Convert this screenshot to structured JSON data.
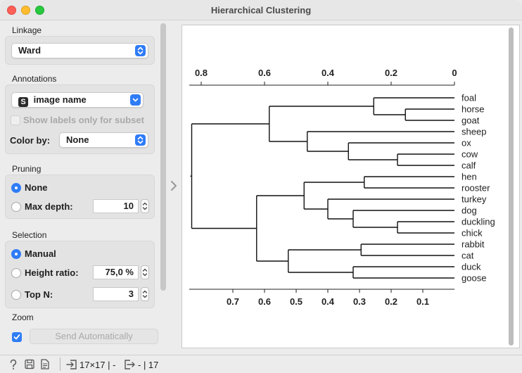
{
  "window": {
    "title": "Hierarchical Clustering"
  },
  "linkage": {
    "label": "Linkage",
    "value": "Ward"
  },
  "annotations": {
    "label": "Annotations",
    "value": "image name",
    "type_badge": "S",
    "show_subset_label": "Show labels only for subset",
    "color_by_label": "Color by:",
    "color_by_value": "None"
  },
  "pruning": {
    "label": "Pruning",
    "none_label": "None",
    "max_depth_label": "Max depth:",
    "max_depth_value": "10",
    "selected": "None"
  },
  "selection": {
    "label": "Selection",
    "manual_label": "Manual",
    "height_ratio_label": "Height ratio:",
    "height_ratio_value": "75,0 %",
    "top_n_label": "Top N:",
    "top_n_value": "3",
    "selected": "Manual"
  },
  "zoom": {
    "label": "Zoom"
  },
  "send": {
    "label": "Send Automatically",
    "auto_checked": true
  },
  "status": {
    "input_summary": "17×17 | -",
    "output_summary": "- | 17"
  },
  "icons": [
    "help-icon",
    "save-icon",
    "report-icon",
    "input-icon",
    "output-icon",
    "collapse-chevron-icon"
  ],
  "chart_data": {
    "type": "dendrogram",
    "top_axis_ticks": [
      "0.8",
      "0.6",
      "0.4",
      "0.2",
      "0"
    ],
    "bottom_axis_ticks": [
      "0.7",
      "0.6",
      "0.5",
      "0.4",
      "0.3",
      "0.2",
      "0.1"
    ],
    "labels": [
      "foal",
      "horse",
      "goat",
      "sheep",
      "ox",
      "cow",
      "calf",
      "hen",
      "rooster",
      "turkey",
      "dog",
      "duckling",
      "chick",
      "rabbit",
      "cat",
      "duck",
      "goose"
    ],
    "merges": [
      {
        "left": 1,
        "right": 2,
        "height": 0.155
      },
      {
        "left": 0,
        "right": "horse+goat",
        "height": 0.255
      },
      {
        "left": 5,
        "right": 6,
        "height": 0.18
      },
      {
        "left": 4,
        "right": "cow+calf",
        "height": 0.335
      },
      {
        "left": 3,
        "right": "ox+cow+calf",
        "height": 0.465
      },
      {
        "left": "foal+horse+goat",
        "right": "sheep+ox+cow+calf",
        "height": 0.585
      },
      {
        "left": 7,
        "right": 8,
        "height": 0.285
      },
      {
        "left": 11,
        "right": 12,
        "height": 0.18
      },
      {
        "left": 10,
        "right": "duckling+chick",
        "height": 0.32
      },
      {
        "left": 9,
        "right": "dog+duckling+chick",
        "height": 0.4
      },
      {
        "left": "hen+rooster",
        "right": "turkey+dog+duckling+chick",
        "height": 0.475
      },
      {
        "left": 13,
        "right": 14,
        "height": 0.295
      },
      {
        "left": 15,
        "right": 16,
        "height": 0.32
      },
      {
        "left": "rabbit+cat",
        "right": "duck+goose",
        "height": 0.525
      },
      {
        "left": "birds+dog",
        "right": "rabbit+cat+duck+goose",
        "height": 0.625
      },
      {
        "left": "foal..calf",
        "right": "hen..goose",
        "height": 0.83
      }
    ]
  }
}
